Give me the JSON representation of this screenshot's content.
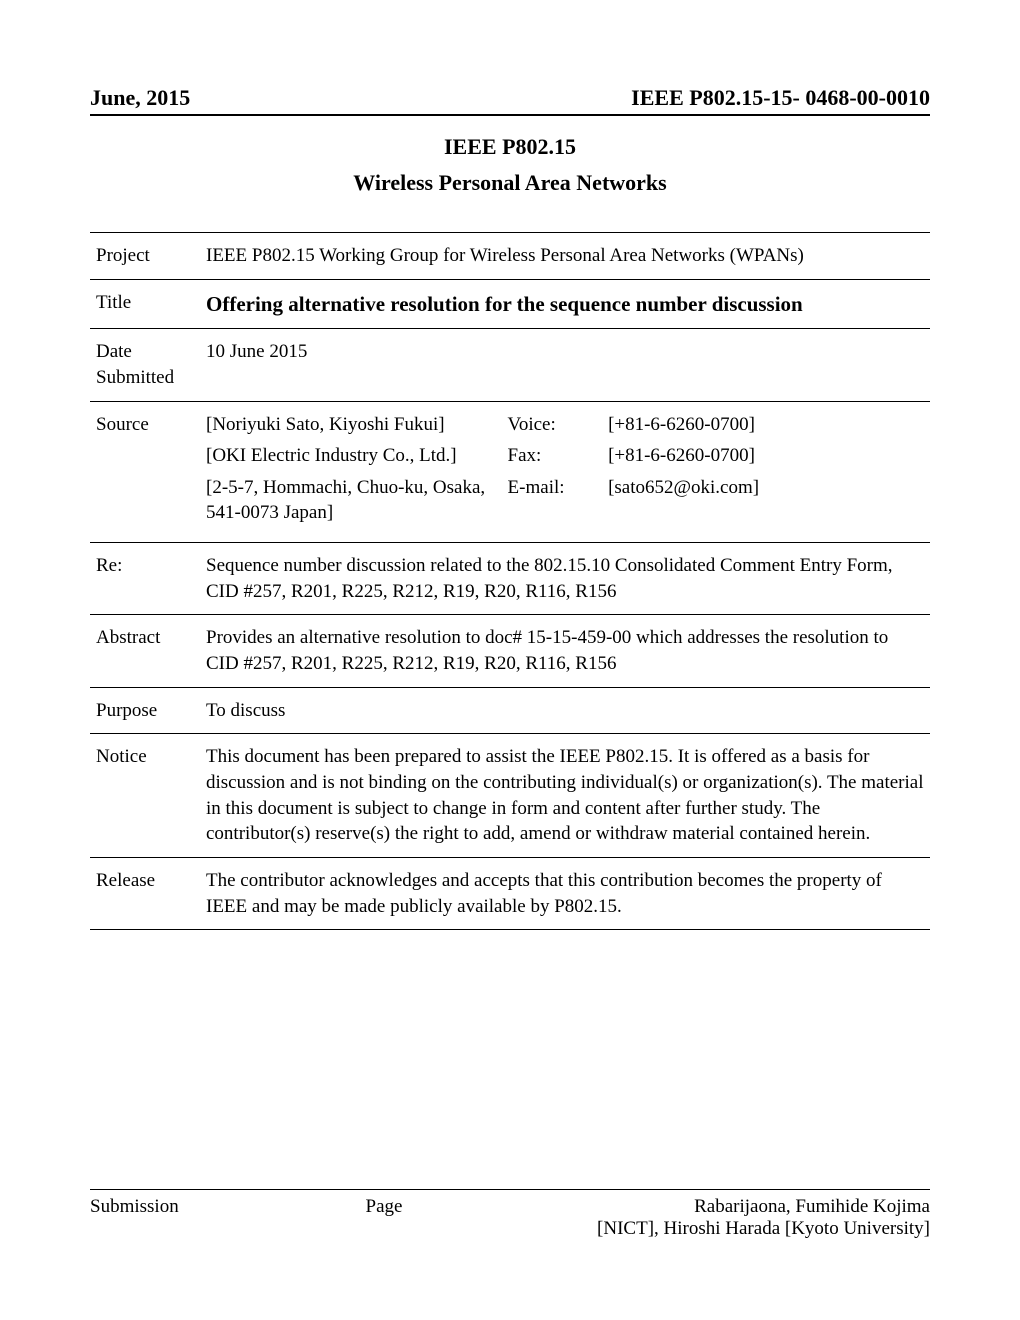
{
  "header": {
    "left": "June, 2015",
    "right": "IEEE P802.15-15- 0468-00-0010"
  },
  "doc_title_1": "IEEE P802.15",
  "doc_title_2": "Wireless Personal Area Networks",
  "rows": {
    "project": {
      "label": "Project",
      "value": "IEEE P802.15 Working Group for Wireless Personal Area Networks (WPANs)"
    },
    "title": {
      "label": "Title",
      "value": "Offering alternative resolution for the sequence number discussion"
    },
    "date_submitted": {
      "label_line1": "Date",
      "label_line2": "Submitted",
      "value": "10 June 2015"
    },
    "source": {
      "label": "Source",
      "authors": "[Noriyuki Sato, Kiyoshi Fukui]",
      "company": "[OKI Electric Industry Co., Ltd.]",
      "address": "[2-5-7, Hommachi, Chuo-ku, Osaka, 541-0073 Japan]",
      "voice_label": "Voice:",
      "voice_value": "[+81-6-6260-0700]",
      "fax_label": "Fax:",
      "fax_value": "[+81-6-6260-0700]",
      "email_label": "E-mail:",
      "email_value": "[sato652@oki.com]"
    },
    "re": {
      "label": "Re:",
      "value": "Sequence number discussion related to the 802.15.10 Consolidated Comment Entry Form, CID #257, R201, R225, R212, R19, R20, R116, R156"
    },
    "abstract": {
      "label": "Abstract",
      "value": "Provides an alternative resolution to doc# 15-15-459-00 which addresses the resolution to CID #257, R201, R225, R212, R19, R20, R116, R156"
    },
    "purpose": {
      "label": "Purpose",
      "value": "To discuss"
    },
    "notice": {
      "label": "Notice",
      "value": "This document has been prepared to assist the IEEE P802.15.  It is offered as a basis for discussion and is not binding on the contributing individual(s) or organization(s). The material in this document is subject to change in form and content after further study. The contributor(s) reserve(s) the right to add, amend or withdraw material contained herein."
    },
    "release": {
      "label": "Release",
      "value": "The contributor acknowledges and accepts that this contribution becomes the property of IEEE and may be made publicly available by P802.15."
    }
  },
  "footer": {
    "left": "Submission",
    "center": "Page",
    "right_line1": "Rabarijaona, Fumihide Kojima",
    "right_line2": "[NICT], Hiroshi Harada [Kyoto University]"
  }
}
